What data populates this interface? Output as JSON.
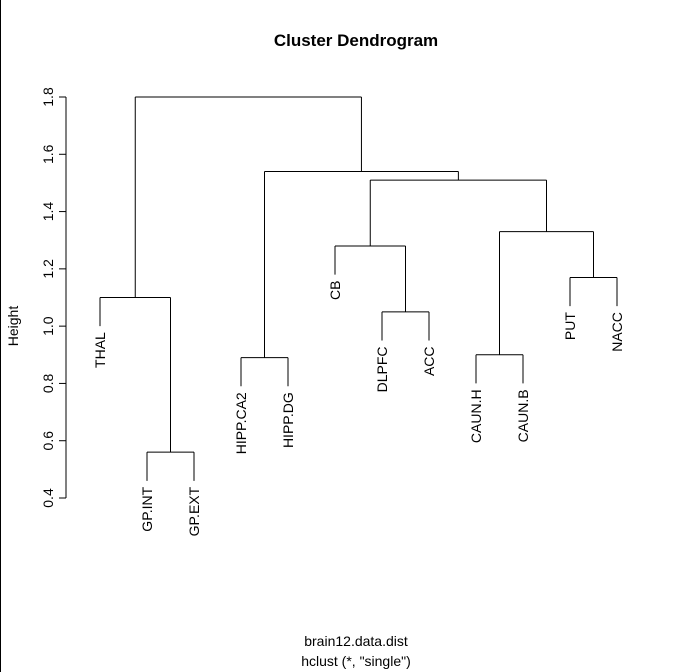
{
  "chart_data": {
    "type": "dendrogram",
    "title": "Cluster Dendrogram",
    "ylabel": "Height",
    "xlabel_line1": "brain12.data.dist",
    "xlabel_line2": "hclust (*, \"single\")",
    "ylim": [
      0.4,
      1.8
    ],
    "yticks": [
      "0.4",
      "0.6",
      "0.8",
      "1.0",
      "1.2",
      "1.4",
      "1.6",
      "1.8"
    ],
    "leaves": [
      "THAL",
      "GP.INT",
      "GP.EXT",
      "HIPP.CA2",
      "HIPP.DG",
      "CB",
      "DLPFC",
      "ACC",
      "CAUN.H",
      "CAUN.B",
      "PUT",
      "NACC"
    ],
    "merges": [
      {
        "left": "GP.INT",
        "right": "GP.EXT",
        "height": 0.56
      },
      {
        "left": "THAL",
        "right": "GP.INT+GP.EXT",
        "height": 1.1
      },
      {
        "left": "HIPP.CA2",
        "right": "HIPP.DG",
        "height": 0.89
      },
      {
        "left": "DLPFC",
        "right": "ACC",
        "height": 1.05
      },
      {
        "left": "CB",
        "right": "DLPFC+ACC",
        "height": 1.28
      },
      {
        "left": "CAUN.H",
        "right": "CAUN.B",
        "height": 0.9
      },
      {
        "left": "PUT",
        "right": "NACC",
        "height": 1.17
      },
      {
        "left": "CAUN.H+CAUN.B",
        "right": "PUT+NACC",
        "height": 1.33
      },
      {
        "left": "CB+DLPFC+ACC",
        "right": "CAUN+PUT+NACC",
        "height": 1.51
      },
      {
        "left": "HIPP.CA2+HIPP.DG",
        "right": "CB..NACC",
        "height": 1.54
      },
      {
        "left": "THAL+GP",
        "right": "HIPP..NACC",
        "height": 1.8
      }
    ]
  }
}
